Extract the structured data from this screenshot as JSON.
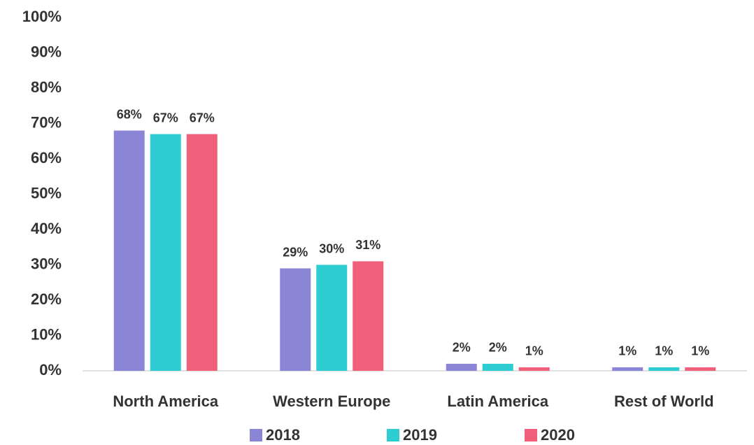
{
  "chart_data": {
    "type": "bar",
    "categories": [
      "North America",
      "Western Europe",
      "Latin America",
      "Rest of World"
    ],
    "series": [
      {
        "name": "2018",
        "color": "#8b85d6",
        "values": [
          68,
          29,
          2,
          1
        ],
        "value_labels": [
          "68%",
          "29%",
          "2%",
          "1%"
        ]
      },
      {
        "name": "2019",
        "color": "#2ecdd2",
        "values": [
          67,
          30,
          2,
          1
        ],
        "value_labels": [
          "67%",
          "30%",
          "2%",
          "1%"
        ]
      },
      {
        "name": "2020",
        "color": "#f0607a",
        "values": [
          67,
          31,
          1,
          1
        ],
        "value_labels": [
          "67%",
          "31%",
          "1%",
          "1%"
        ]
      }
    ],
    "ylim": [
      0,
      100
    ],
    "yticks": [
      {
        "value": 0,
        "label": "0%"
      },
      {
        "value": 10,
        "label": "10%"
      },
      {
        "value": 20,
        "label": "20%"
      },
      {
        "value": 30,
        "label": "30%"
      },
      {
        "value": 40,
        "label": "40%"
      },
      {
        "value": 50,
        "label": "50%"
      },
      {
        "value": 60,
        "label": "60%"
      },
      {
        "value": 70,
        "label": "70%"
      },
      {
        "value": 80,
        "label": "80%"
      },
      {
        "value": 90,
        "label": "90%"
      },
      {
        "value": 100,
        "label": "100%"
      }
    ],
    "grid": false,
    "legend": "bottom"
  }
}
